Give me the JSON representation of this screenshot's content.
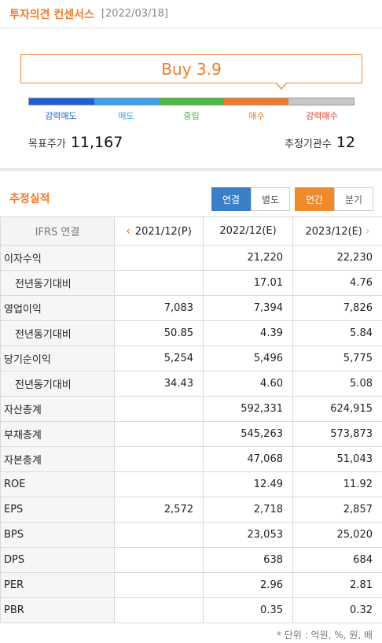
{
  "header": {
    "title": "투자의견 컨센서스",
    "date": "[2022/03/18]"
  },
  "consensus": {
    "rating": "Buy 3.9",
    "scale": [
      {
        "label": "강력매도",
        "color": "#1f5fd6"
      },
      {
        "label": "매도",
        "color": "#3aa0ee"
      },
      {
        "label": "중립",
        "color": "#4ab845"
      },
      {
        "label": "매수",
        "color": "#f07a24"
      },
      {
        "label": "강력매수",
        "color": "#c8c8c8",
        "label_color": "#e03a2a"
      }
    ],
    "target_price_label": "목표주가",
    "target_price": "11,167",
    "institutions_label": "추정기관수",
    "institutions": "12"
  },
  "estimates": {
    "title": "추정실적",
    "toggle_scope": [
      "연결",
      "별도"
    ],
    "toggle_period": [
      "연간",
      "분기"
    ],
    "corner": "IFRS 연결",
    "columns": [
      "2021/12(P)",
      "2022/12(E)",
      "2023/12(E)"
    ],
    "rows": [
      {
        "label": "이자수익",
        "sub": false,
        "values": [
          "",
          "21,220",
          "22,230"
        ]
      },
      {
        "label": "전년동기대비",
        "sub": true,
        "values": [
          "",
          "17.01",
          "4.76"
        ]
      },
      {
        "label": "영업이익",
        "sub": false,
        "values": [
          "7,083",
          "7,394",
          "7,826"
        ]
      },
      {
        "label": "전년동기대비",
        "sub": true,
        "values": [
          "50.85",
          "4.39",
          "5.84"
        ]
      },
      {
        "label": "당기순이익",
        "sub": false,
        "values": [
          "5,254",
          "5,496",
          "5,775"
        ]
      },
      {
        "label": "전년동기대비",
        "sub": true,
        "values": [
          "34.43",
          "4.60",
          "5.08"
        ]
      },
      {
        "label": "자산총계",
        "sub": false,
        "values": [
          "",
          "592,331",
          "624,915"
        ]
      },
      {
        "label": "부채총계",
        "sub": false,
        "values": [
          "",
          "545,263",
          "573,873"
        ]
      },
      {
        "label": "자본총계",
        "sub": false,
        "values": [
          "",
          "47,068",
          "51,043"
        ]
      },
      {
        "label": "ROE",
        "sub": false,
        "values": [
          "",
          "12.49",
          "11.92"
        ]
      },
      {
        "label": "EPS",
        "sub": false,
        "values": [
          "2,572",
          "2,718",
          "2,857"
        ]
      },
      {
        "label": "BPS",
        "sub": false,
        "values": [
          "",
          "23,053",
          "25,020"
        ]
      },
      {
        "label": "DPS",
        "sub": false,
        "values": [
          "",
          "638",
          "684"
        ]
      },
      {
        "label": "PER",
        "sub": false,
        "values": [
          "",
          "2.96",
          "2.81"
        ]
      },
      {
        "label": "PBR",
        "sub": false,
        "values": [
          "",
          "0.35",
          "0.32"
        ]
      }
    ],
    "unit_note": "* 단위 : 억원, %, 원, 배"
  }
}
